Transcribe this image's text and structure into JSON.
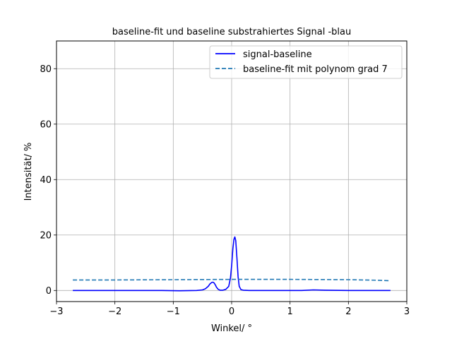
{
  "chart_data": {
    "type": "line",
    "title": "baseline-fit und baseline substrahiertes Signal -blau",
    "xlabel": "Winkel/ °",
    "ylabel": "Intensität/ %",
    "xlim": [
      -3,
      3
    ],
    "ylim": [
      -4,
      90
    ],
    "xticks": [
      -3,
      -2,
      -1,
      0,
      1,
      2,
      3
    ],
    "xtick_labels": [
      "−3",
      "−2",
      "−1",
      "0",
      "1",
      "2",
      "3"
    ],
    "yticks": [
      0,
      20,
      40,
      60,
      80
    ],
    "ytick_labels": [
      "0",
      "20",
      "40",
      "60",
      "80"
    ],
    "grid": true,
    "legend_position": "top-right",
    "series": [
      {
        "name": "signal-baseline",
        "color": "#0000ff",
        "style": "solid",
        "x": [
          -2.72,
          -2.4,
          -2.0,
          -1.6,
          -1.2,
          -0.9,
          -0.6,
          -0.5,
          -0.45,
          -0.4,
          -0.37,
          -0.34,
          -0.32,
          -0.3,
          -0.28,
          -0.26,
          -0.23,
          -0.2,
          -0.15,
          -0.1,
          -0.05,
          -0.02,
          0.0,
          0.02,
          0.04,
          0.055,
          0.07,
          0.09,
          0.11,
          0.13,
          0.16,
          0.2,
          0.3,
          0.5,
          0.8,
          1.0,
          1.2,
          1.4,
          1.6,
          2.0,
          2.4,
          2.72
        ],
        "y": [
          0.0,
          0.0,
          0.0,
          0.0,
          0.0,
          -0.1,
          0.0,
          0.2,
          0.6,
          1.5,
          2.4,
          2.9,
          3.0,
          2.7,
          2.0,
          1.2,
          0.4,
          0.1,
          0.1,
          0.4,
          1.5,
          4.5,
          9.0,
          15.0,
          18.5,
          19.3,
          18.0,
          12.0,
          5.0,
          1.5,
          0.3,
          0.1,
          0.0,
          0.0,
          0.0,
          0.0,
          0.0,
          0.2,
          0.1,
          0.0,
          0.0,
          0.0
        ]
      },
      {
        "name": "baseline-fit mit polynom grad 7",
        "color": "#1f77b4",
        "style": "dashed",
        "x": [
          -2.72,
          -2.0,
          -1.0,
          0.0,
          1.0,
          2.0,
          2.5,
          2.72
        ],
        "y": [
          3.8,
          3.8,
          3.9,
          4.0,
          4.0,
          3.9,
          3.7,
          3.5
        ]
      }
    ]
  }
}
